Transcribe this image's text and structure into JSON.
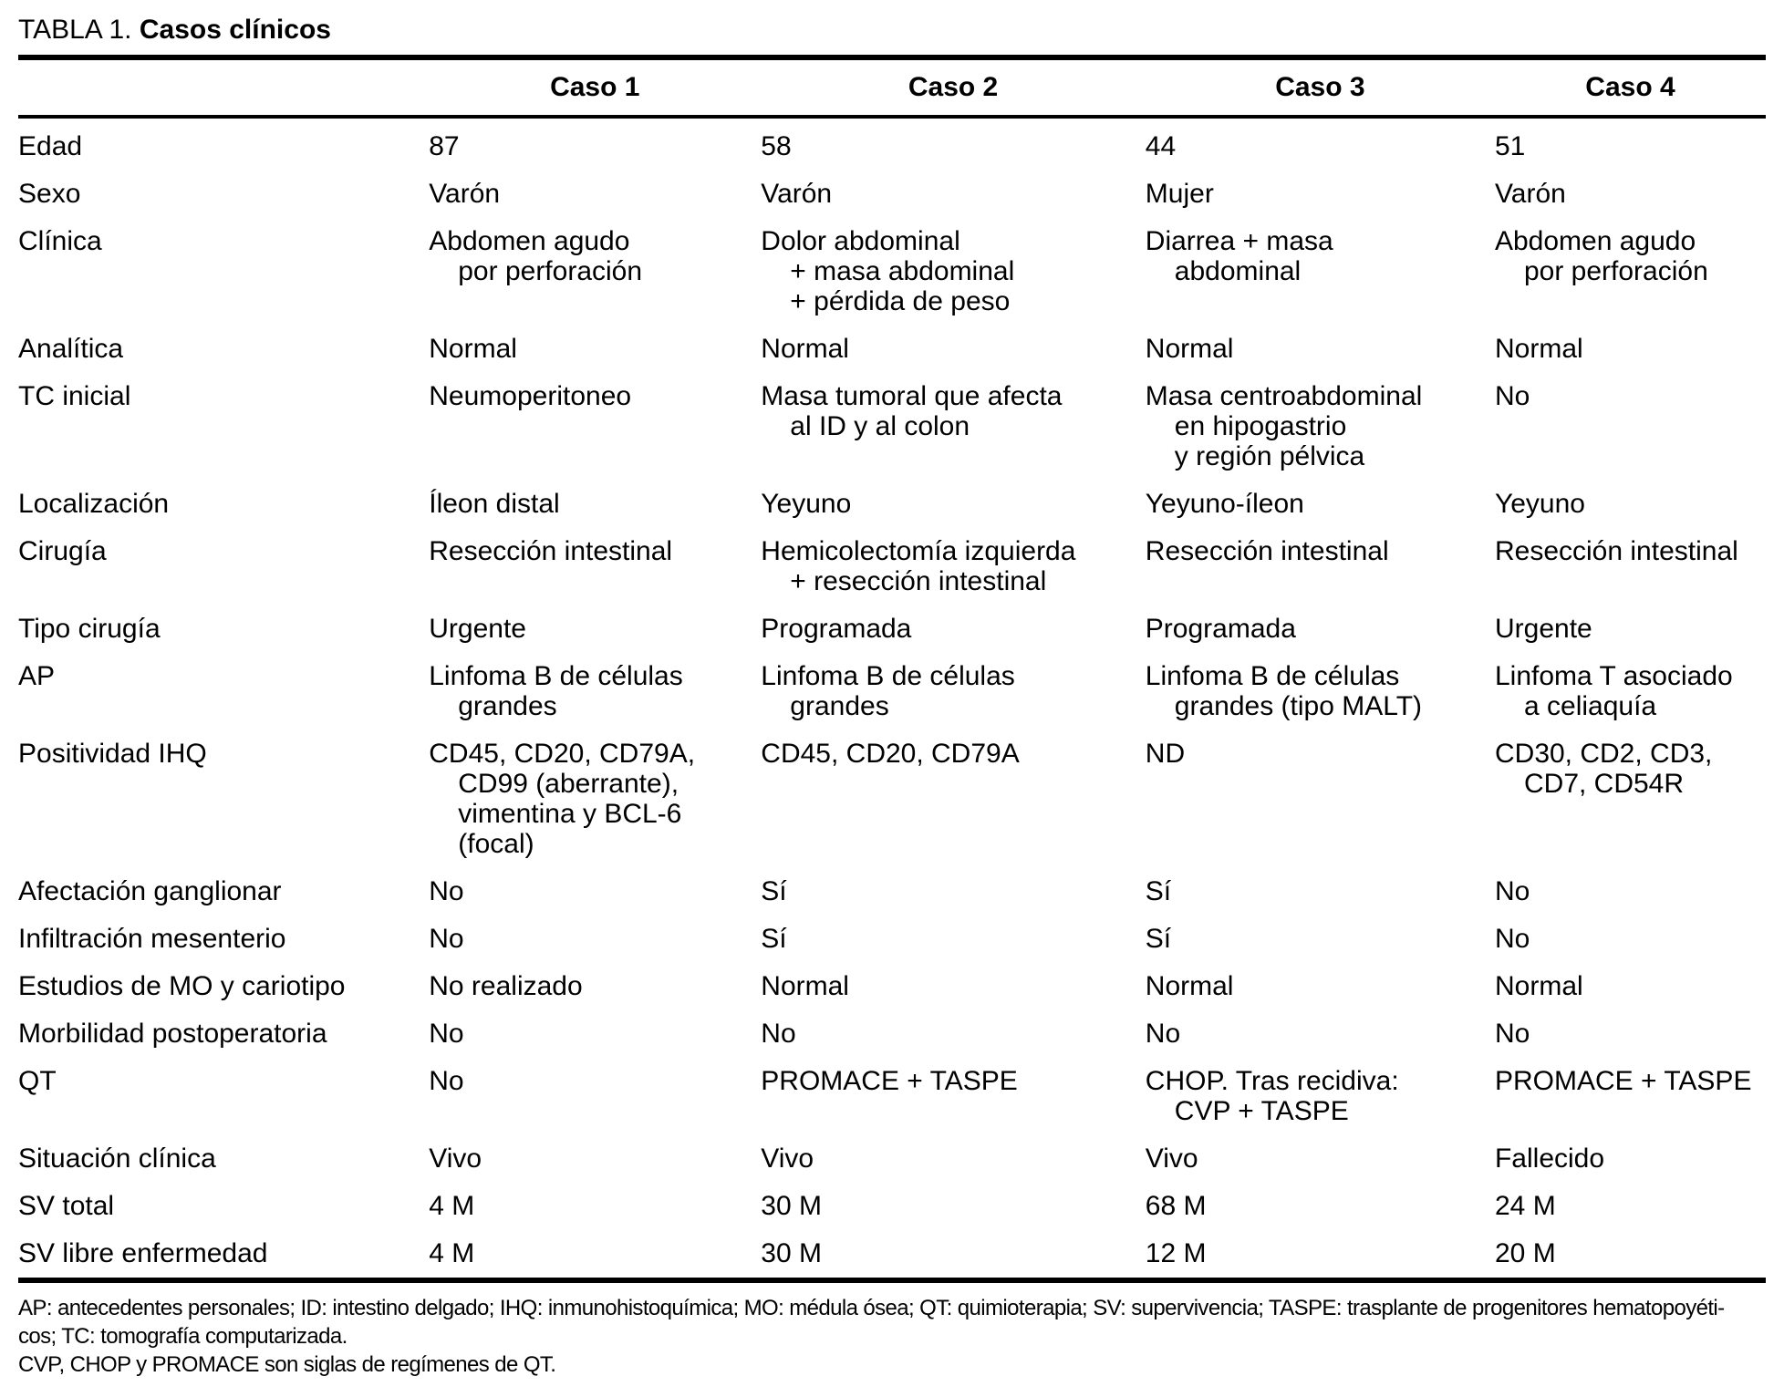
{
  "title": {
    "label": "TABLA 1.",
    "caption": "Casos clínicos"
  },
  "table": {
    "columns": [
      "Caso 1",
      "Caso 2",
      "Caso 3",
      "Caso 4"
    ],
    "rows": [
      {
        "label": "Edad",
        "values": [
          "87",
          "58",
          "44",
          "51"
        ]
      },
      {
        "label": "Sexo",
        "values": [
          "Varón",
          "Varón",
          "Mujer",
          "Varón"
        ]
      },
      {
        "label": "Clínica",
        "values": [
          "Abdomen agudo\npor perforación",
          "Dolor abdominal\n+ masa abdominal\n+ pérdida de peso",
          "Diarrea + masa\nabdominal",
          "Abdomen agudo\npor perforación"
        ]
      },
      {
        "label": "Analítica",
        "values": [
          "Normal",
          "Normal",
          "Normal",
          "Normal"
        ]
      },
      {
        "label": "TC inicial",
        "values": [
          "Neumoperitoneo",
          "Masa tumoral que afecta\nal ID y al colon",
          "Masa centroabdominal\nen hipogastrio\ny región pélvica",
          "No"
        ]
      },
      {
        "label": "Localización",
        "values": [
          "Íleon distal",
          "Yeyuno",
          "Yeyuno-íleon",
          "Yeyuno"
        ]
      },
      {
        "label": "Cirugía",
        "values": [
          "Resección intestinal",
          "Hemicolectomía izquierda\n+ resección intestinal",
          "Resección intestinal",
          "Resección intestinal"
        ]
      },
      {
        "label": "Tipo cirugía",
        "values": [
          "Urgente",
          "Programada",
          "Programada",
          "Urgente"
        ]
      },
      {
        "label": "AP",
        "values": [
          "Linfoma B de células\ngrandes",
          "Linfoma B de células\ngrandes",
          "Linfoma B de células\ngrandes (tipo MALT)",
          "Linfoma T asociado\na celiaquía"
        ]
      },
      {
        "label": "Positividad IHQ",
        "values": [
          "CD45, CD20, CD79A,\nCD99 (aberrante),\nvimentina y BCL-6\n(focal)",
          "CD45, CD20, CD79A",
          "ND",
          "CD30, CD2, CD3,\nCD7, CD54R"
        ]
      },
      {
        "label": "Afectación ganglionar",
        "values": [
          "No",
          "Sí",
          "Sí",
          "No"
        ]
      },
      {
        "label": "Infiltración mesenterio",
        "values": [
          "No",
          "Sí",
          "Sí",
          "No"
        ]
      },
      {
        "label": "Estudios de MO y cariotipo",
        "values": [
          "No realizado",
          "Normal",
          "Normal",
          "Normal"
        ]
      },
      {
        "label": "Morbilidad postoperatoria",
        "values": [
          "No",
          "No",
          "No",
          "No"
        ]
      },
      {
        "label": "QT",
        "values": [
          "No",
          "PROMACE + TASPE",
          "CHOP. Tras recidiva:\nCVP + TASPE",
          "PROMACE + TASPE"
        ]
      },
      {
        "label": "Situación clínica",
        "values": [
          "Vivo",
          "Vivo",
          "Vivo",
          "Fallecido"
        ]
      },
      {
        "label": "SV total",
        "values": [
          "4 M",
          "30 M",
          "68 M",
          "24 M"
        ]
      },
      {
        "label": "SV libre enfermedad",
        "values": [
          "4 M",
          "30 M",
          "12 M",
          "20 M"
        ]
      }
    ]
  },
  "footnotes": {
    "abbreviations": "AP: antecedentes personales; ID: intestino delgado; IHQ: inmunohistoquímica; MO: médula ósea; QT: quimioterapia; SV: supervivencia; TASPE: trasplante de progenitores hematopoyéti-\ncos; TC: tomografía computarizada.",
    "regimens": "CVP, CHOP y PROMACE son siglas de regímenes de QT."
  },
  "colors": {
    "text": "#000000",
    "background": "#ffffff",
    "rule": "#000000"
  }
}
